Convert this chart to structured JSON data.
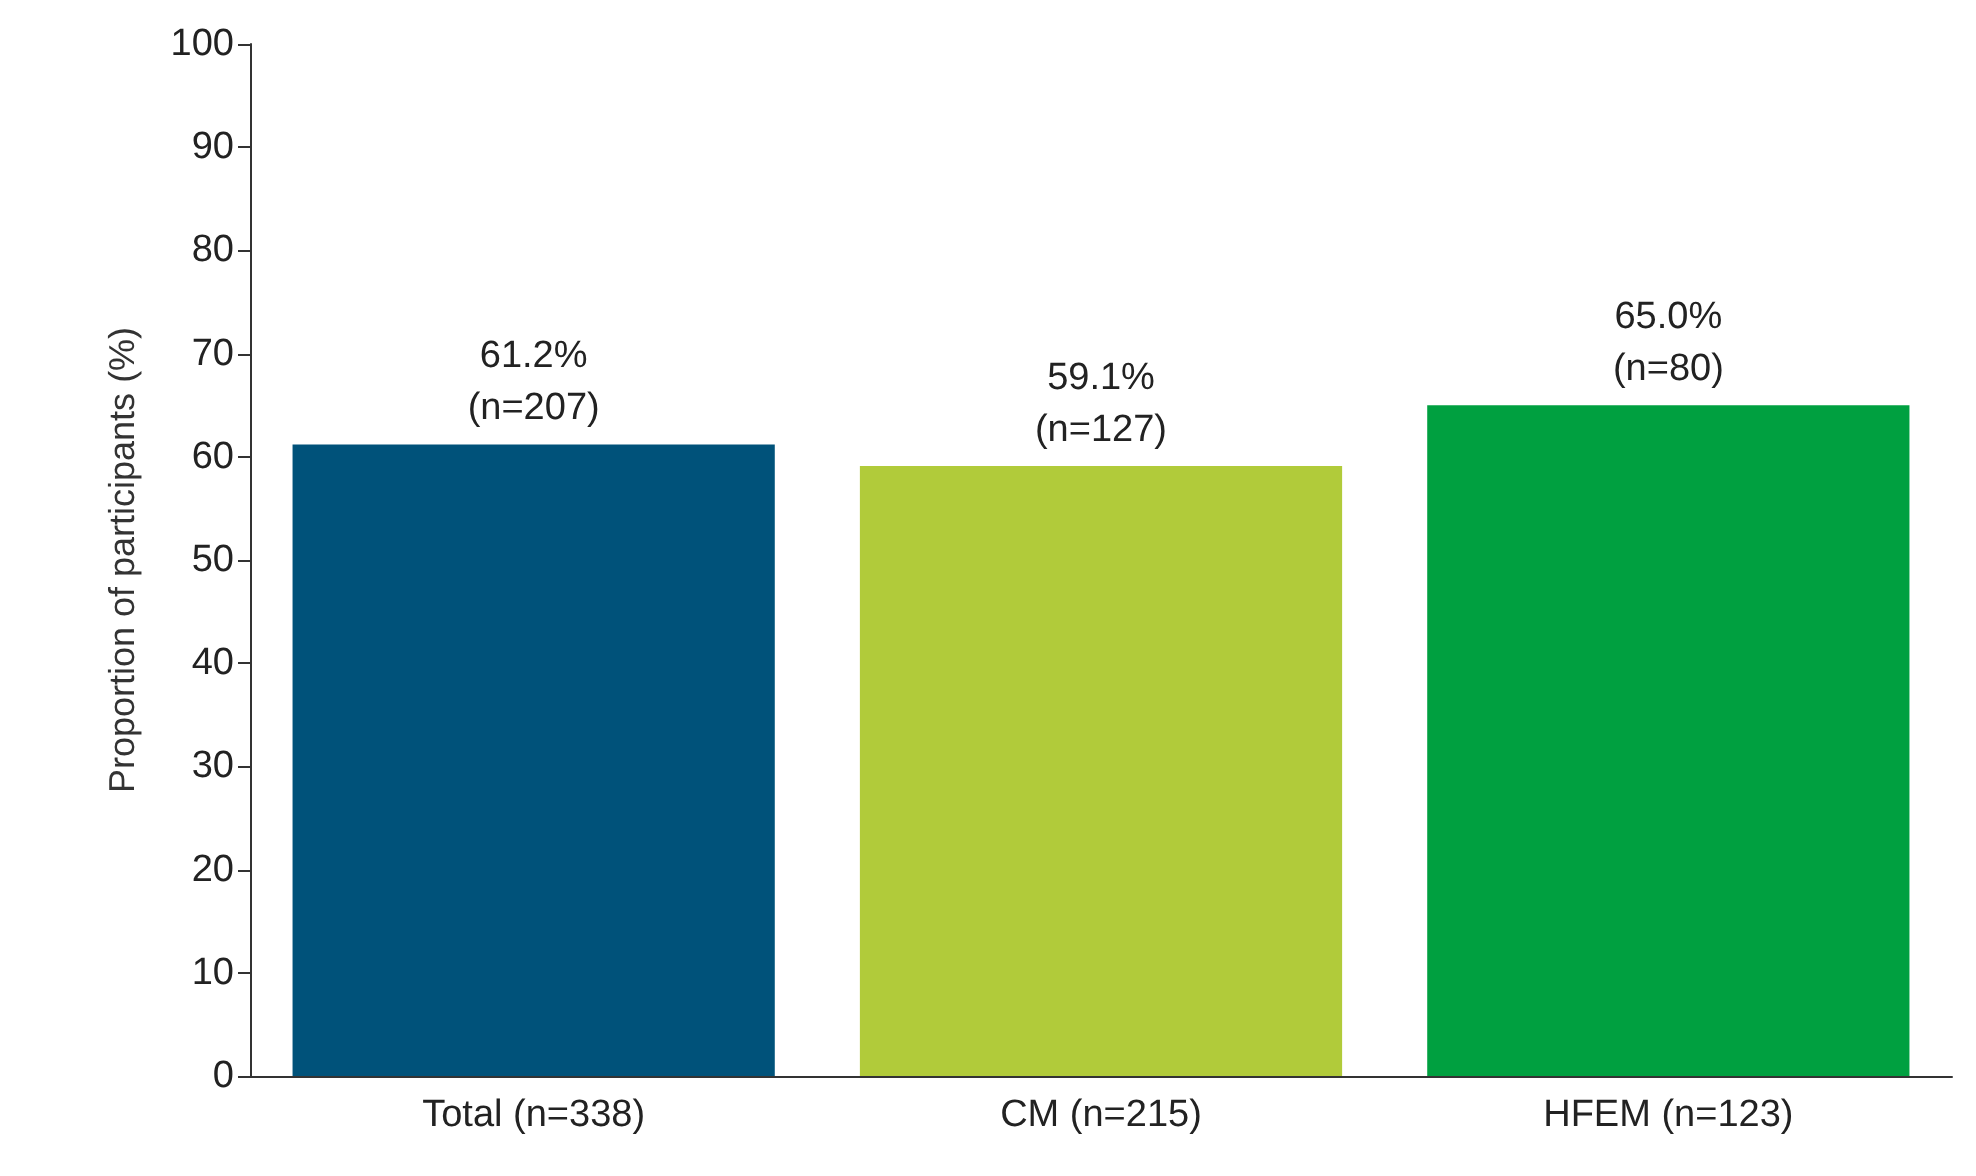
{
  "chart_data": {
    "type": "bar",
    "ylabel": "Proportion of participants (%)",
    "categories": [
      "Total (n=338)",
      "CM (n=215)",
      "HFEM (n=123)"
    ],
    "values": [
      61.2,
      59.1,
      65.0
    ],
    "colors": [
      "#00527a",
      "#b1cb3a",
      "#00a040"
    ],
    "value_labels": [
      "61.2%\n(n=207)",
      "59.1%\n(n=127)",
      "65.0%\n(n=80)"
    ],
    "ylim": [
      0,
      100
    ],
    "yticks": [
      0,
      10,
      20,
      30,
      40,
      50,
      60,
      70,
      80,
      90,
      100
    ],
    "grid": false
  }
}
